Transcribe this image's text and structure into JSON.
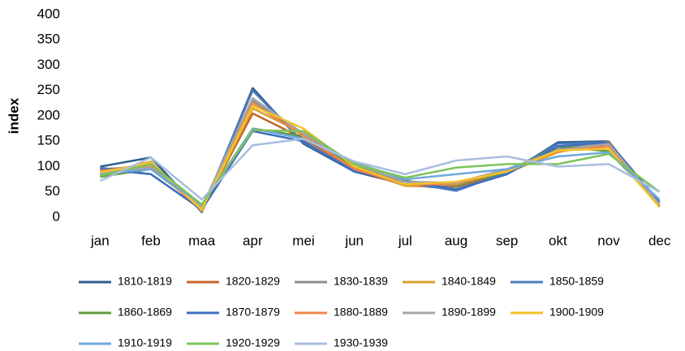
{
  "chart_data": {
    "type": "line",
    "ylabel": "index",
    "categories": [
      "jan",
      "feb",
      "maa",
      "apr",
      "mei",
      "jun",
      "jul",
      "aug",
      "sep",
      "okt",
      "nov",
      "dec"
    ],
    "ylim": [
      0,
      400
    ],
    "yticks": [
      0,
      50,
      100,
      150,
      200,
      250,
      300,
      350,
      400
    ],
    "grid": false,
    "series": [
      {
        "name": "1810-1819",
        "color": "#2e5d8e",
        "values": [
          100,
          118,
          10,
          255,
          145,
          90,
          65,
          55,
          85,
          148,
          150,
          20
        ]
      },
      {
        "name": "1820-1829",
        "color": "#c8632a",
        "values": [
          95,
          100,
          15,
          205,
          155,
          95,
          62,
          60,
          88,
          140,
          140,
          22
        ]
      },
      {
        "name": "1830-1839",
        "color": "#8c8c8c",
        "values": [
          92,
          105,
          18,
          230,
          160,
          98,
          65,
          62,
          90,
          135,
          145,
          25
        ]
      },
      {
        "name": "1840-1849",
        "color": "#d9a12a",
        "values": [
          85,
          110,
          12,
          215,
          165,
          97,
          62,
          65,
          88,
          128,
          150,
          20
        ]
      },
      {
        "name": "1850-1859",
        "color": "#4a7ebb",
        "values": [
          98,
          85,
          15,
          250,
          148,
          92,
          70,
          52,
          88,
          145,
          148,
          30
        ]
      },
      {
        "name": "1860-1869",
        "color": "#5f9a3e",
        "values": [
          80,
          95,
          20,
          175,
          160,
          100,
          72,
          62,
          90,
          140,
          130,
          25
        ]
      },
      {
        "name": "1870-1879",
        "color": "#3e6fc0",
        "values": [
          95,
          85,
          15,
          170,
          150,
          90,
          72,
          55,
          85,
          140,
          148,
          30
        ]
      },
      {
        "name": "1880-1889",
        "color": "#f0884a",
        "values": [
          92,
          100,
          15,
          225,
          160,
          95,
          65,
          65,
          92,
          130,
          140,
          20
        ]
      },
      {
        "name": "1890-1899",
        "color": "#a5a5a5",
        "values": [
          88,
          98,
          20,
          235,
          165,
          105,
          70,
          68,
          95,
          132,
          145,
          25
        ]
      },
      {
        "name": "1900-1909",
        "color": "#f5c22a",
        "values": [
          88,
          108,
          15,
          220,
          175,
          100,
          65,
          70,
          90,
          132,
          135,
          20
        ]
      },
      {
        "name": "1910-1919",
        "color": "#6fa8dc",
        "values": [
          85,
          95,
          25,
          175,
          155,
          108,
          75,
          85,
          95,
          120,
          128,
          35
        ]
      },
      {
        "name": "1920-1929",
        "color": "#7ec35a",
        "values": [
          82,
          105,
          25,
          172,
          170,
          105,
          78,
          98,
          105,
          105,
          125,
          50
        ]
      },
      {
        "name": "1930-1939",
        "color": "#a8bedf",
        "values": [
          72,
          118,
          35,
          142,
          155,
          110,
          85,
          112,
          120,
          100,
          105,
          50
        ]
      }
    ]
  }
}
